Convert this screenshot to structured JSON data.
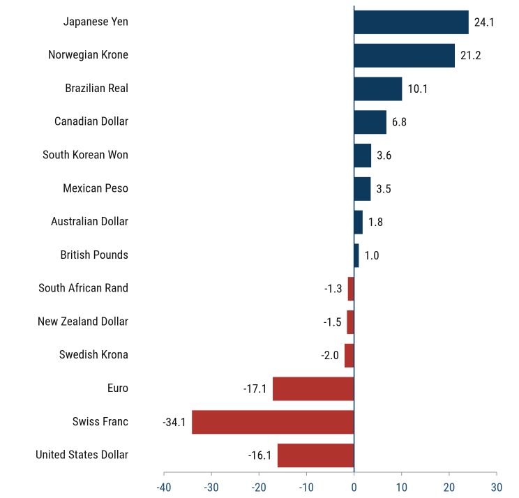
{
  "chart_data": {
    "type": "barh",
    "categories": [
      "Japanese Yen",
      "Norwegian Krone",
      "Brazilian Real",
      "Canadian Dollar",
      "South Korean Won",
      "Mexican Peso",
      "Australian Dollar",
      "British Pounds",
      "South African Rand",
      "New Zealand Dollar",
      "Swedish Krona",
      "Euro",
      "Swiss Franc",
      "United States Dollar"
    ],
    "values": [
      24.1,
      21.2,
      10.1,
      6.8,
      3.6,
      3.5,
      1.8,
      1.0,
      -1.3,
      -1.5,
      -2.0,
      -17.1,
      -34.1,
      -16.1
    ],
    "value_labels": [
      "24.1",
      "21.2",
      "10.1",
      "6.8",
      "3.6",
      "3.5",
      "1.8",
      "1.0",
      "-1.3",
      "-1.5",
      "-2.0",
      "-17.1",
      "-34.1",
      "-16.1"
    ],
    "color": "#0d3a5c",
    "negative_color": "#b0332e",
    "xlim": [
      -40,
      30
    ],
    "xticks": [
      -40,
      -30,
      -20,
      -10,
      0,
      10,
      20,
      30
    ],
    "grid": false
  }
}
